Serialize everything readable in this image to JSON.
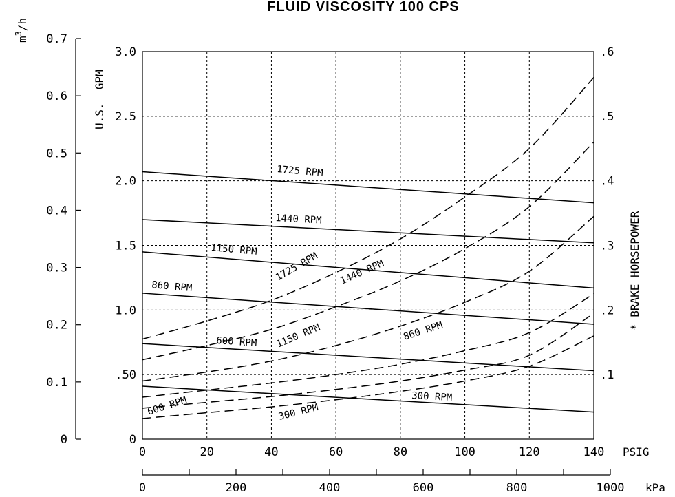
{
  "chart_data": {
    "type": "line",
    "title": "FLUID  VISCOSITY  100  CPS",
    "x": [
      0,
      140
    ],
    "xlim": [
      0,
      140
    ],
    "xlabel": "PSIG",
    "xticks": [
      "0",
      "20",
      "40",
      "60",
      "80",
      "100",
      "120",
      "140"
    ],
    "x2label": "kPa",
    "x2lim": [
      0,
      1000
    ],
    "x2ticks": [
      "0",
      "200",
      "400",
      "600",
      "800",
      "1000"
    ],
    "ylabel": "U.S.  GPM",
    "ylim": [
      0,
      3.0
    ],
    "yticks": [
      "0",
      ".50",
      "1.0",
      "1.5",
      "2.0",
      "2.5",
      "3.0"
    ],
    "y_metric_label": "m³/h",
    "y_metric_lim": [
      0,
      0.7
    ],
    "y_metric_ticks": [
      "0",
      "0.1",
      "0.2",
      "0.3",
      "0.4",
      "0.5",
      "0.6",
      "0.7"
    ],
    "y2label": "* BRAKE HORSEPOWER",
    "y2lim": [
      0,
      0.6
    ],
    "y2ticks": [
      ".1",
      ".2",
      ".3",
      ".4",
      ".5",
      ".6"
    ],
    "grid": true,
    "flow_series": [
      {
        "name": "1725 RPM",
        "x": [
          0,
          140
        ],
        "y": [
          2.07,
          1.83
        ]
      },
      {
        "name": "1440 RPM",
        "x": [
          0,
          140
        ],
        "y": [
          1.7,
          1.52
        ]
      },
      {
        "name": "1150 RPM",
        "x": [
          0,
          140
        ],
        "y": [
          1.45,
          1.17
        ]
      },
      {
        "name": "860 RPM",
        "x": [
          0,
          140
        ],
        "y": [
          1.13,
          0.89
        ]
      },
      {
        "name": "600 RPM",
        "x": [
          0,
          140
        ],
        "y": [
          0.74,
          0.53
        ]
      },
      {
        "name": "300 RPM",
        "x": [
          0,
          140
        ],
        "y": [
          0.41,
          0.21
        ]
      }
    ],
    "power_series": [
      {
        "name": "1725 RPM",
        "x": [
          0,
          20,
          40,
          60,
          80,
          100,
          120,
          140
        ],
        "y": [
          0.155,
          0.183,
          0.215,
          0.258,
          0.31,
          0.375,
          0.45,
          0.56
        ]
      },
      {
        "name": "1440 RPM",
        "x": [
          0,
          20,
          40,
          60,
          80,
          100,
          120,
          140
        ],
        "y": [
          0.123,
          0.145,
          0.17,
          0.205,
          0.245,
          0.295,
          0.36,
          0.46
        ]
      },
      {
        "name": "1150 RPM",
        "x": [
          0,
          20,
          40,
          60,
          80,
          100,
          120,
          140
        ],
        "y": [
          0.09,
          0.104,
          0.121,
          0.145,
          0.175,
          0.212,
          0.26,
          0.345
        ]
      },
      {
        "name": "860 RPM",
        "x": [
          0,
          20,
          40,
          60,
          80,
          100,
          120,
          140
        ],
        "y": [
          0.065,
          0.076,
          0.087,
          0.1,
          0.116,
          0.137,
          0.165,
          0.225
        ]
      },
      {
        "name": "600 RPM",
        "x": [
          0,
          20,
          40,
          60,
          80,
          100,
          120,
          140
        ],
        "y": [
          0.048,
          0.057,
          0.066,
          0.077,
          0.09,
          0.107,
          0.13,
          0.195
        ]
      },
      {
        "name": "300 RPM",
        "x": [
          0,
          20,
          40,
          60,
          80,
          100,
          120,
          140
        ],
        "y": [
          0.032,
          0.041,
          0.05,
          0.061,
          0.074,
          0.09,
          0.113,
          0.16
        ]
      }
    ]
  }
}
